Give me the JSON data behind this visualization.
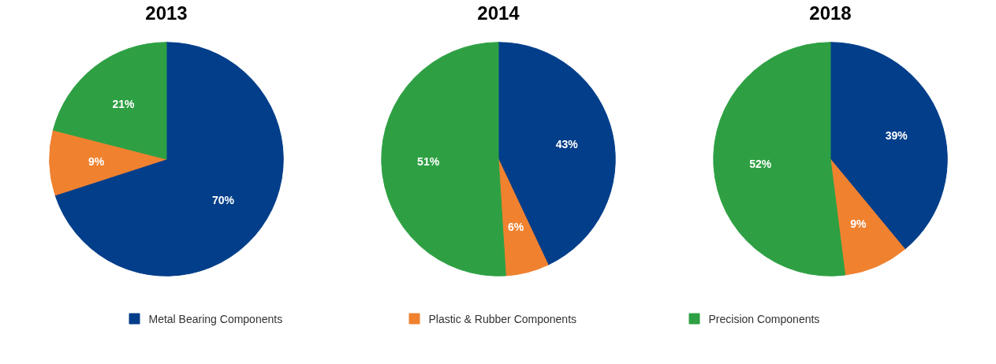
{
  "chart_data": [
    {
      "type": "pie",
      "title": "2013",
      "categories": [
        "Metal Bearing Components",
        "Plastic & Rubber Components",
        "Precision Components"
      ],
      "values": [
        70,
        9,
        21
      ],
      "value_labels": [
        "70%",
        "9%",
        "21%"
      ],
      "colors": [
        "#023e8a",
        "#f0812f",
        "#2ea043"
      ],
      "legend": "bottom"
    },
    {
      "type": "pie",
      "title": "2014",
      "categories": [
        null,
        null,
        null
      ],
      "values": [
        43,
        6,
        51
      ],
      "value_labels": [
        "43%",
        "6%",
        "51%"
      ],
      "colors": [
        "#023e8a",
        "#f0812f",
        "#2ea043"
      ]
    },
    {
      "type": "pie",
      "title": "2018",
      "categories": [
        null,
        null,
        null
      ],
      "values": [
        39,
        9,
        52
      ],
      "value_labels": [
        "39%",
        "9%",
        "52%"
      ],
      "colors": [
        "#023e8a",
        "#f0812f",
        "#2ea043"
      ]
    }
  ]
}
